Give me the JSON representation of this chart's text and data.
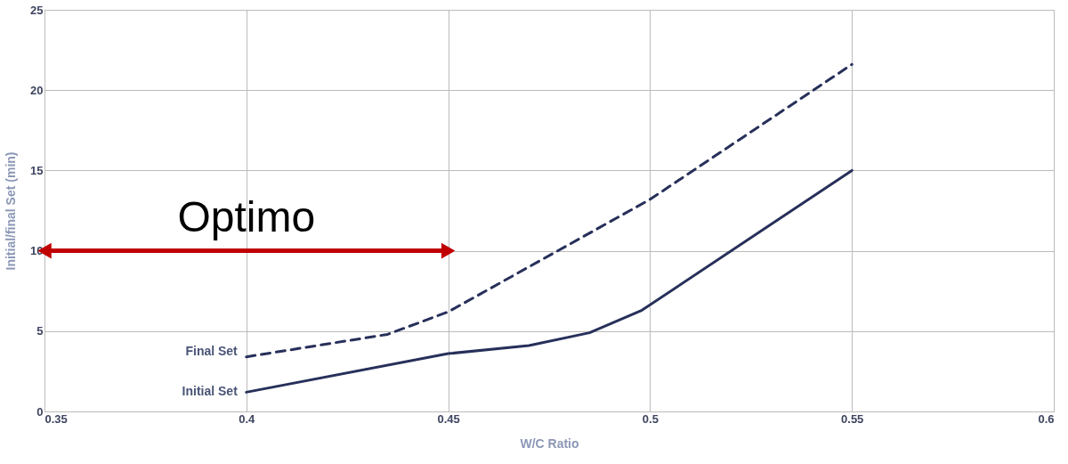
{
  "chart_data": {
    "type": "line",
    "xlabel": "W/C Ratio",
    "ylabel": "Initial/final Set (min)",
    "xlim": [
      0.35,
      0.6
    ],
    "xticks": [
      0.35,
      0.4,
      0.45,
      0.5,
      0.55,
      0.6
    ],
    "ylim": [
      0,
      25
    ],
    "yticks": [
      0,
      5,
      10,
      15,
      20,
      25
    ],
    "grid": true,
    "legend": false,
    "series": [
      {
        "name": "Final Set",
        "color": "#27305a",
        "line_style": "dashed",
        "x": [
          0.4,
          0.435,
          0.45,
          0.5,
          0.55
        ],
        "values": [
          3.4,
          4.8,
          6.2,
          13.2,
          21.6
        ]
      },
      {
        "name": "Initial Set",
        "color": "#27305a",
        "line_style": "solid",
        "x": [
          0.4,
          0.45,
          0.47,
          0.485,
          0.498,
          0.55
        ],
        "values": [
          1.2,
          3.6,
          4.1,
          4.9,
          6.3,
          15
        ]
      },
      {
        "color": "#c00000",
        "line_style": "solid",
        "marker": "triangle",
        "x": [
          0.35,
          0.45
        ],
        "values": [
          10,
          10
        ]
      }
    ],
    "annotations": [
      {
        "text": "Optimo",
        "x": 0.4,
        "y": 10
      }
    ]
  }
}
